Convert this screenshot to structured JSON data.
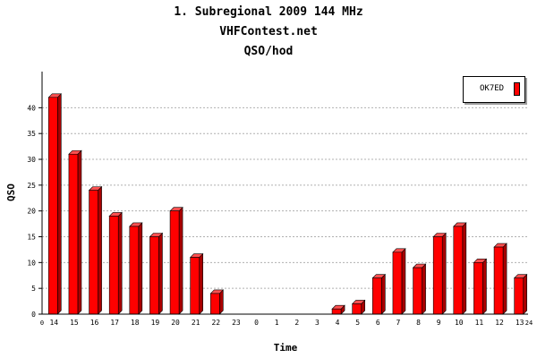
{
  "chart_data": {
    "type": "bar",
    "title": "1. Subregional 2009  144 MHz",
    "subtitle": "VHFContest.net",
    "subtitle2": "QSO/hod",
    "xlabel": "Time",
    "ylabel": "QSO",
    "ylim": [
      0,
      47
    ],
    "yticks": [
      0,
      5,
      10,
      15,
      20,
      25,
      30,
      35,
      40
    ],
    "x_start_label": "0",
    "x_end_label": "24",
    "grid": true,
    "legend_position": "top-right",
    "categories": [
      "14",
      "15",
      "16",
      "17",
      "18",
      "19",
      "20",
      "21",
      "22",
      "23",
      "0",
      "1",
      "2",
      "3",
      "4",
      "5",
      "6",
      "7",
      "8",
      "9",
      "10",
      "11",
      "12",
      "13"
    ],
    "series": [
      {
        "name": "OK7ED",
        "color": "#ff0000",
        "values": [
          42,
          31,
          24,
          19,
          17,
          15,
          20,
          11,
          4,
          0,
          0,
          0,
          0,
          0,
          1,
          2,
          7,
          12,
          9,
          15,
          17,
          10,
          13,
          7
        ]
      }
    ]
  }
}
